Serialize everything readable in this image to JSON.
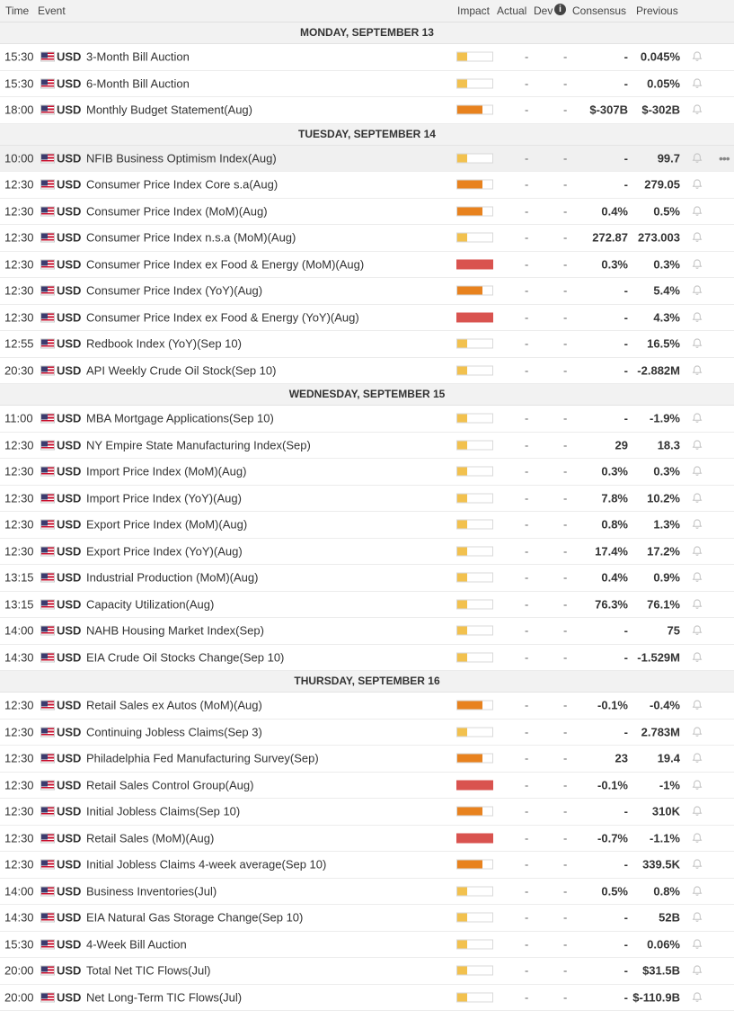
{
  "header": {
    "time": "Time",
    "event": "Event",
    "impact": "Impact",
    "actual": "Actual",
    "dev": "Dev",
    "info_icon": "i",
    "consensus": "Consensus",
    "previous": "Previous"
  },
  "days": [
    {
      "label": "MONDAY, SEPTEMBER 13",
      "events": [
        {
          "time": "15:30",
          "cur": "USD",
          "name": "3-Month Bill Auction",
          "impact": "low",
          "actual": "-",
          "dev": "-",
          "cons": "-",
          "prev": "0.045%"
        },
        {
          "time": "15:30",
          "cur": "USD",
          "name": "6-Month Bill Auction",
          "impact": "low",
          "actual": "-",
          "dev": "-",
          "cons": "-",
          "prev": "0.05%"
        },
        {
          "time": "18:00",
          "cur": "USD",
          "name": "Monthly Budget Statement(Aug)",
          "impact": "med",
          "actual": "-",
          "dev": "-",
          "cons": "$-307B",
          "prev": "$-302B"
        }
      ]
    },
    {
      "label": "TUESDAY, SEPTEMBER 14",
      "events": [
        {
          "time": "10:00",
          "cur": "USD",
          "name": "NFIB Business Optimism Index(Aug)",
          "impact": "low",
          "actual": "-",
          "dev": "-",
          "cons": "-",
          "prev": "99.7",
          "highlight": true,
          "more": "•••"
        },
        {
          "time": "12:30",
          "cur": "USD",
          "name": "Consumer Price Index Core s.a(Aug)",
          "impact": "med",
          "actual": "-",
          "dev": "-",
          "cons": "-",
          "prev": "279.05"
        },
        {
          "time": "12:30",
          "cur": "USD",
          "name": "Consumer Price Index (MoM)(Aug)",
          "impact": "med",
          "actual": "-",
          "dev": "-",
          "cons": "0.4%",
          "prev": "0.5%"
        },
        {
          "time": "12:30",
          "cur": "USD",
          "name": "Consumer Price Index n.s.a (MoM)(Aug)",
          "impact": "low",
          "actual": "-",
          "dev": "-",
          "cons": "272.87",
          "prev": "273.003"
        },
        {
          "time": "12:30",
          "cur": "USD",
          "name": "Consumer Price Index ex Food & Energy (MoM)(Aug)",
          "impact": "high",
          "actual": "-",
          "dev": "-",
          "cons": "0.3%",
          "prev": "0.3%"
        },
        {
          "time": "12:30",
          "cur": "USD",
          "name": "Consumer Price Index (YoY)(Aug)",
          "impact": "med",
          "actual": "-",
          "dev": "-",
          "cons": "-",
          "prev": "5.4%"
        },
        {
          "time": "12:30",
          "cur": "USD",
          "name": "Consumer Price Index ex Food & Energy (YoY)(Aug)",
          "impact": "high",
          "actual": "-",
          "dev": "-",
          "cons": "-",
          "prev": "4.3%"
        },
        {
          "time": "12:55",
          "cur": "USD",
          "name": "Redbook Index (YoY)(Sep 10)",
          "impact": "low",
          "actual": "-",
          "dev": "-",
          "cons": "-",
          "prev": "16.5%"
        },
        {
          "time": "20:30",
          "cur": "USD",
          "name": "API Weekly Crude Oil Stock(Sep 10)",
          "impact": "low",
          "actual": "-",
          "dev": "-",
          "cons": "-",
          "prev": "-2.882M"
        }
      ]
    },
    {
      "label": "WEDNESDAY, SEPTEMBER 15",
      "events": [
        {
          "time": "11:00",
          "cur": "USD",
          "name": "MBA Mortgage Applications(Sep 10)",
          "impact": "low",
          "actual": "-",
          "dev": "-",
          "cons": "-",
          "prev": "-1.9%"
        },
        {
          "time": "12:30",
          "cur": "USD",
          "name": "NY Empire State Manufacturing Index(Sep)",
          "impact": "low",
          "actual": "-",
          "dev": "-",
          "cons": "29",
          "prev": "18.3"
        },
        {
          "time": "12:30",
          "cur": "USD",
          "name": "Import Price Index (MoM)(Aug)",
          "impact": "low",
          "actual": "-",
          "dev": "-",
          "cons": "0.3%",
          "prev": "0.3%"
        },
        {
          "time": "12:30",
          "cur": "USD",
          "name": "Import Price Index (YoY)(Aug)",
          "impact": "low",
          "actual": "-",
          "dev": "-",
          "cons": "7.8%",
          "prev": "10.2%"
        },
        {
          "time": "12:30",
          "cur": "USD",
          "name": "Export Price Index (MoM)(Aug)",
          "impact": "low",
          "actual": "-",
          "dev": "-",
          "cons": "0.8%",
          "prev": "1.3%"
        },
        {
          "time": "12:30",
          "cur": "USD",
          "name": "Export Price Index (YoY)(Aug)",
          "impact": "low",
          "actual": "-",
          "dev": "-",
          "cons": "17.4%",
          "prev": "17.2%"
        },
        {
          "time": "13:15",
          "cur": "USD",
          "name": "Industrial Production (MoM)(Aug)",
          "impact": "low",
          "actual": "-",
          "dev": "-",
          "cons": "0.4%",
          "prev": "0.9%"
        },
        {
          "time": "13:15",
          "cur": "USD",
          "name": "Capacity Utilization(Aug)",
          "impact": "low",
          "actual": "-",
          "dev": "-",
          "cons": "76.3%",
          "prev": "76.1%"
        },
        {
          "time": "14:00",
          "cur": "USD",
          "name": "NAHB Housing Market Index(Sep)",
          "impact": "low",
          "actual": "-",
          "dev": "-",
          "cons": "-",
          "prev": "75"
        },
        {
          "time": "14:30",
          "cur": "USD",
          "name": "EIA Crude Oil Stocks Change(Sep 10)",
          "impact": "low",
          "actual": "-",
          "dev": "-",
          "cons": "-",
          "prev": "-1.529M"
        }
      ]
    },
    {
      "label": "THURSDAY, SEPTEMBER 16",
      "events": [
        {
          "time": "12:30",
          "cur": "USD",
          "name": "Retail Sales ex Autos (MoM)(Aug)",
          "impact": "med",
          "actual": "-",
          "dev": "-",
          "cons": "-0.1%",
          "prev": "-0.4%"
        },
        {
          "time": "12:30",
          "cur": "USD",
          "name": "Continuing Jobless Claims(Sep 3)",
          "impact": "low",
          "actual": "-",
          "dev": "-",
          "cons": "-",
          "prev": "2.783M"
        },
        {
          "time": "12:30",
          "cur": "USD",
          "name": "Philadelphia Fed Manufacturing Survey(Sep)",
          "impact": "med",
          "actual": "-",
          "dev": "-",
          "cons": "23",
          "prev": "19.4"
        },
        {
          "time": "12:30",
          "cur": "USD",
          "name": "Retail Sales Control Group(Aug)",
          "impact": "high",
          "actual": "-",
          "dev": "-",
          "cons": "-0.1%",
          "prev": "-1%"
        },
        {
          "time": "12:30",
          "cur": "USD",
          "name": "Initial Jobless Claims(Sep 10)",
          "impact": "med",
          "actual": "-",
          "dev": "-",
          "cons": "-",
          "prev": "310K"
        },
        {
          "time": "12:30",
          "cur": "USD",
          "name": "Retail Sales (MoM)(Aug)",
          "impact": "high",
          "actual": "-",
          "dev": "-",
          "cons": "-0.7%",
          "prev": "-1.1%"
        },
        {
          "time": "12:30",
          "cur": "USD",
          "name": "Initial Jobless Claims 4-week average(Sep 10)",
          "impact": "med",
          "actual": "-",
          "dev": "-",
          "cons": "-",
          "prev": "339.5K"
        },
        {
          "time": "14:00",
          "cur": "USD",
          "name": "Business Inventories(Jul)",
          "impact": "low",
          "actual": "-",
          "dev": "-",
          "cons": "0.5%",
          "prev": "0.8%"
        },
        {
          "time": "14:30",
          "cur": "USD",
          "name": "EIA Natural Gas Storage Change(Sep 10)",
          "impact": "low",
          "actual": "-",
          "dev": "-",
          "cons": "-",
          "prev": "52B"
        },
        {
          "time": "15:30",
          "cur": "USD",
          "name": "4-Week Bill Auction",
          "impact": "low",
          "actual": "-",
          "dev": "-",
          "cons": "-",
          "prev": "0.06%"
        },
        {
          "time": "20:00",
          "cur": "USD",
          "name": "Total Net TIC Flows(Jul)",
          "impact": "low",
          "actual": "-",
          "dev": "-",
          "cons": "-",
          "prev": "$31.5B"
        },
        {
          "time": "20:00",
          "cur": "USD",
          "name": "Net Long-Term TIC Flows(Jul)",
          "impact": "low",
          "actual": "-",
          "dev": "-",
          "cons": "-",
          "prev": "$-110.9B"
        }
      ]
    }
  ],
  "colors": {
    "low": "#f2c14e",
    "med": "#e8821e",
    "high": "#d9534f"
  },
  "icons": {
    "flag": "us-flag-icon",
    "bell": "bell-icon",
    "info": "info-icon"
  }
}
